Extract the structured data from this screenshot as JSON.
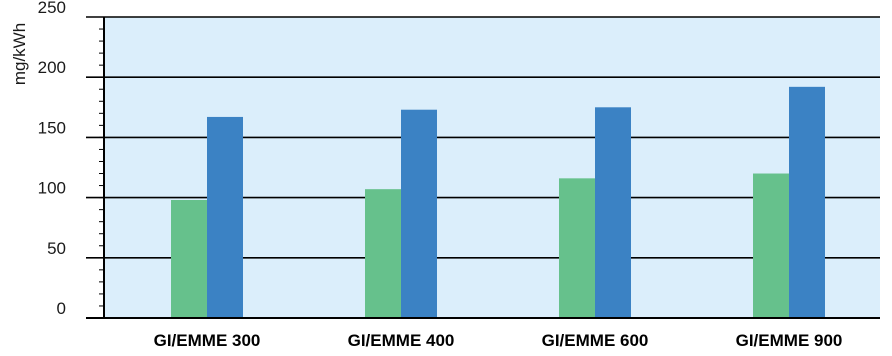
{
  "chart_data": {
    "type": "bar",
    "title": "",
    "xlabel": "",
    "ylabel": "mg/kWh",
    "categories": [
      "GI/EMME 300",
      "GI/EMME 400",
      "GI/EMME 600",
      "GI/EMME 900"
    ],
    "series": [
      {
        "values": [
          98,
          107,
          116,
          120
        ],
        "color": "#66c18c"
      },
      {
        "values": [
          167,
          173,
          175,
          192
        ],
        "color": "#3b82c4"
      }
    ],
    "ylim": [
      0,
      250
    ],
    "yticks": [
      0,
      50,
      100,
      150,
      200,
      250
    ],
    "grid": true,
    "legend": "none",
    "plot_background": "#dbeefb"
  }
}
